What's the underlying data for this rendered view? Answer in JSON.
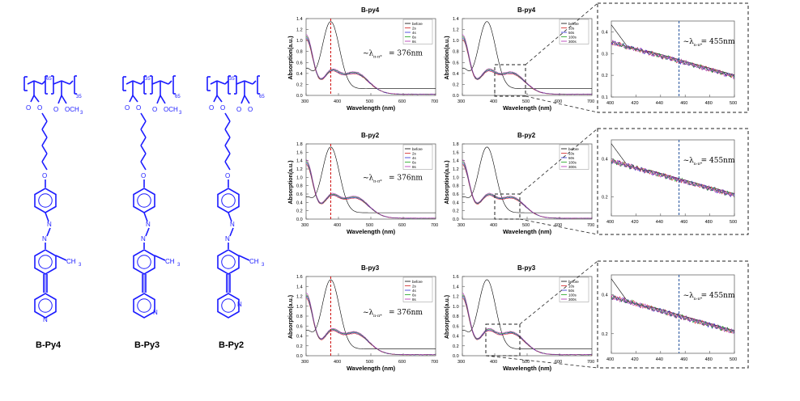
{
  "structures": [
    {
      "name": "B-Py4",
      "backbone": {
        "sub_left": "65",
        "sub_right": "35"
      },
      "ester_label": "OCH",
      "ester_sub": "3",
      "atoms": {
        "o": "O",
        "n1": "N",
        "n2": "N",
        "ring_n": "N",
        "me": "CH",
        "me_sub": "3"
      },
      "pyridine": "4"
    },
    {
      "name": "B-Py3",
      "backbone": {
        "sub_left": "35",
        "sub_right": "65"
      },
      "ester_label": "OCH",
      "ester_sub": "3",
      "atoms": {
        "o": "O",
        "n1": "N",
        "n2": "N",
        "ring_n": "N",
        "me": "CH",
        "me_sub": "3"
      },
      "pyridine": "3"
    },
    {
      "name": "B-Py2",
      "backbone": {
        "sub_left": "35",
        "sub_right": "65"
      },
      "ester_label": "",
      "ester_sub": "",
      "atoms": {
        "o": "O",
        "n1": "N",
        "n2": "N",
        "ring_n": "N",
        "me": "CH",
        "me_sub": "3"
      },
      "pyridine": "2"
    }
  ],
  "colors": {
    "structure": "#1a1aff",
    "dashed_red": "#cc0000",
    "dashed_blue": "#1f4e9a",
    "inset_border": "#222222"
  },
  "chart_data": [
    {
      "type": "line",
      "title": "B-py4",
      "xlabel": "Wavelength (nm)",
      "ylabel": "Absorption(a.u.)",
      "xlim": [
        300,
        700
      ],
      "ylim": [
        0.0,
        1.4
      ],
      "xticks": [
        "300",
        "400",
        "500",
        "600",
        "700"
      ],
      "yticks": [
        "0.0",
        "0.2",
        "0.4",
        "0.6",
        "0.8",
        "1.0",
        "1.2",
        "1.4"
      ],
      "legend": [
        "before",
        "2s",
        "4s",
        "6s",
        "8s"
      ],
      "annotation": "~λ",
      "annotation_sub": "π-π*",
      "annotation_value": "= 376nm",
      "marker_x": 376,
      "marker_color": "red"
    },
    {
      "type": "line",
      "title": "B-py4",
      "xlabel": "Wavelength (nm)",
      "ylabel": "Absorption(a.u.)",
      "xlim": [
        300,
        700
      ],
      "ylim": [
        0.0,
        1.4
      ],
      "xticks": [
        "300",
        "400",
        "500",
        "600",
        "700"
      ],
      "yticks": [
        "0.0",
        "0.2",
        "0.4",
        "0.6",
        "0.8",
        "1.0",
        "1.2",
        "1.4"
      ],
      "legend": [
        "before",
        "10s",
        "50s",
        "100s",
        "300s"
      ]
    },
    {
      "type": "line",
      "title": "",
      "xlabel": "",
      "ylabel": "",
      "xlim": [
        400,
        500
      ],
      "ylim": [
        0.1,
        0.45
      ],
      "xticks": [
        "400",
        "420",
        "440",
        "460",
        "480",
        "500"
      ],
      "yticks": [
        "0.1",
        "0.2",
        "0.3",
        "0.4"
      ],
      "annotation": "~λ",
      "annotation_sub": "n-π*",
      "annotation_value": "= 455nm",
      "marker_x": 455,
      "marker_color": "blue"
    },
    {
      "type": "line",
      "title": "B-py2",
      "xlabel": "Wavelength (nm)",
      "ylabel": "Absorption(a.u.)",
      "xlim": [
        300,
        700
      ],
      "ylim": [
        0.0,
        1.8
      ],
      "xticks": [
        "300",
        "400",
        "500",
        "600",
        "700"
      ],
      "yticks": [
        "0.0",
        "0.2",
        "0.4",
        "0.6",
        "0.8",
        "1.0",
        "1.2",
        "1.4",
        "1.6",
        "1.8"
      ],
      "legend": [
        "before",
        "2s",
        "4s",
        "6s",
        "8s"
      ],
      "annotation": "~λ",
      "annotation_sub": "π-π*",
      "annotation_value": "= 376nm",
      "marker_x": 376,
      "marker_color": "red"
    },
    {
      "type": "line",
      "title": "B-py2",
      "xlabel": "Wavelength (nm)",
      "ylabel": "Absorption(a.u.)",
      "xlim": [
        300,
        700
      ],
      "ylim": [
        0.0,
        1.8
      ],
      "xticks": [
        "300",
        "400",
        "500",
        "600",
        "700"
      ],
      "yticks": [
        "0.0",
        "0.2",
        "0.4",
        "0.6",
        "0.8",
        "1.0",
        "1.2",
        "1.4",
        "1.6",
        "1.8"
      ],
      "legend": [
        "before",
        "10s",
        "50s",
        "100s",
        "300s"
      ]
    },
    {
      "type": "line",
      "title": "",
      "xlabel": "",
      "ylabel": "",
      "xlim": [
        400,
        500
      ],
      "ylim": [
        0.1,
        0.5
      ],
      "xticks": [
        "400",
        "420",
        "440",
        "460",
        "480",
        "500"
      ],
      "yticks": [
        "0.2",
        "0.4"
      ],
      "annotation": "~λ",
      "annotation_sub": "n-π*",
      "annotation_value": "= 455nm",
      "marker_x": 455,
      "marker_color": "blue"
    },
    {
      "type": "line",
      "title": "B-py3",
      "xlabel": "Wavelength (nm)",
      "ylabel": "Absorption(a.u.)",
      "xlim": [
        300,
        700
      ],
      "ylim": [
        0.0,
        1.6
      ],
      "xticks": [
        "300",
        "400",
        "500",
        "600",
        "700"
      ],
      "yticks": [
        "0.0",
        "0.2",
        "0.4",
        "0.6",
        "0.8",
        "1.0",
        "1.2",
        "1.4",
        "1.6"
      ],
      "legend": [
        "before",
        "2s",
        "4s",
        "6s",
        "8s"
      ],
      "annotation": "~λ",
      "annotation_sub": "π-π*",
      "annotation_value": "= 376nm",
      "marker_x": 376,
      "marker_color": "red"
    },
    {
      "type": "line",
      "title": "B-py3",
      "xlabel": "Wavelength (nm)",
      "ylabel": "Absorption(a.u.)",
      "xlim": [
        300,
        700
      ],
      "ylim": [
        0.0,
        1.6
      ],
      "xticks": [
        "300",
        "400",
        "500",
        "600",
        "700"
      ],
      "yticks": [
        "0.0",
        "0.2",
        "0.4",
        "0.6",
        "0.8",
        "1.0",
        "1.2",
        "1.4",
        "1.6"
      ],
      "legend": [
        "before",
        "10s",
        "50s",
        "100s",
        "300s"
      ]
    },
    {
      "type": "line",
      "title": "",
      "xlabel": "",
      "ylabel": "",
      "xlim": [
        400,
        500
      ],
      "ylim": [
        0.1,
        0.5
      ],
      "xticks": [
        "400",
        "420",
        "440",
        "460",
        "480",
        "500"
      ],
      "yticks": [
        "0.2",
        "0.4"
      ],
      "annotation": "~λ",
      "annotation_sub": "n-π*",
      "annotation_value": "= 455nm",
      "marker_x": 455,
      "marker_color": "blue"
    }
  ],
  "series_colors": [
    "#000000",
    "#d11f1f",
    "#2a2ad6",
    "#1aa01a",
    "#b02ab0"
  ]
}
